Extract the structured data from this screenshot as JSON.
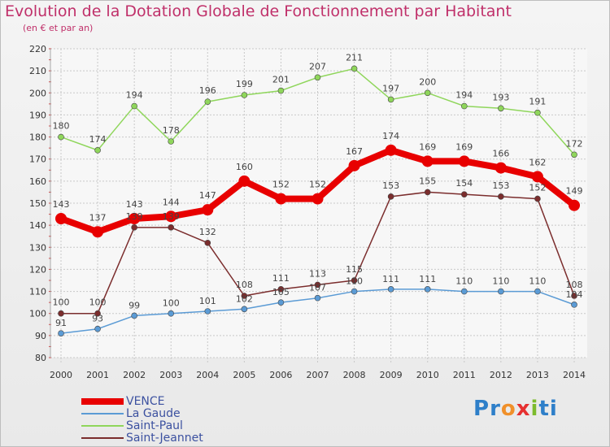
{
  "title": "Evolution de la Dotation Globale de Fonctionnement par Habitant",
  "subtitle": "(en € et par an)",
  "logo": {
    "text": "Proxiti",
    "letters": [
      "P",
      "r",
      "o",
      "x",
      "i",
      "t",
      "i"
    ],
    "colors": [
      "#2e7fc9",
      "#2e7fc9",
      "#f0902a",
      "#e63030",
      "#7cbb2e",
      "#2e7fc9",
      "#2e7fc9"
    ]
  },
  "chart_data": {
    "type": "line",
    "x": [
      "2000",
      "2001",
      "2002",
      "2003",
      "2004",
      "2005",
      "2006",
      "2007",
      "2008",
      "2009",
      "2010",
      "2011",
      "2012",
      "2013",
      "2014"
    ],
    "ylim": [
      80,
      220
    ],
    "yticks": [
      80,
      90,
      100,
      110,
      120,
      130,
      140,
      150,
      160,
      170,
      180,
      190,
      200,
      210,
      220
    ],
    "grid": true,
    "legend_position": "bottom-left",
    "series": [
      {
        "name": "VENCE",
        "color": "#e80000",
        "thick": true,
        "values": [
          143,
          137,
          143,
          144,
          147,
          160,
          152,
          152,
          167,
          174,
          169,
          169,
          166,
          162,
          149
        ]
      },
      {
        "name": "La Gaude",
        "color": "#5b9bd5",
        "thick": false,
        "values": [
          91,
          93,
          99,
          100,
          101,
          102,
          105,
          107,
          110,
          111,
          111,
          110,
          110,
          110,
          104
        ]
      },
      {
        "name": "Saint-Paul",
        "color": "#8fd65b",
        "thick": false,
        "values": [
          180,
          174,
          194,
          178,
          196,
          199,
          201,
          207,
          211,
          197,
          200,
          194,
          193,
          191,
          172
        ]
      },
      {
        "name": "Saint-Jeannet",
        "color": "#7b2d2d",
        "thick": false,
        "values": [
          100,
          100,
          139,
          139,
          132,
          108,
          111,
          113,
          115,
          153,
          155,
          154,
          153,
          152,
          108
        ]
      }
    ]
  }
}
